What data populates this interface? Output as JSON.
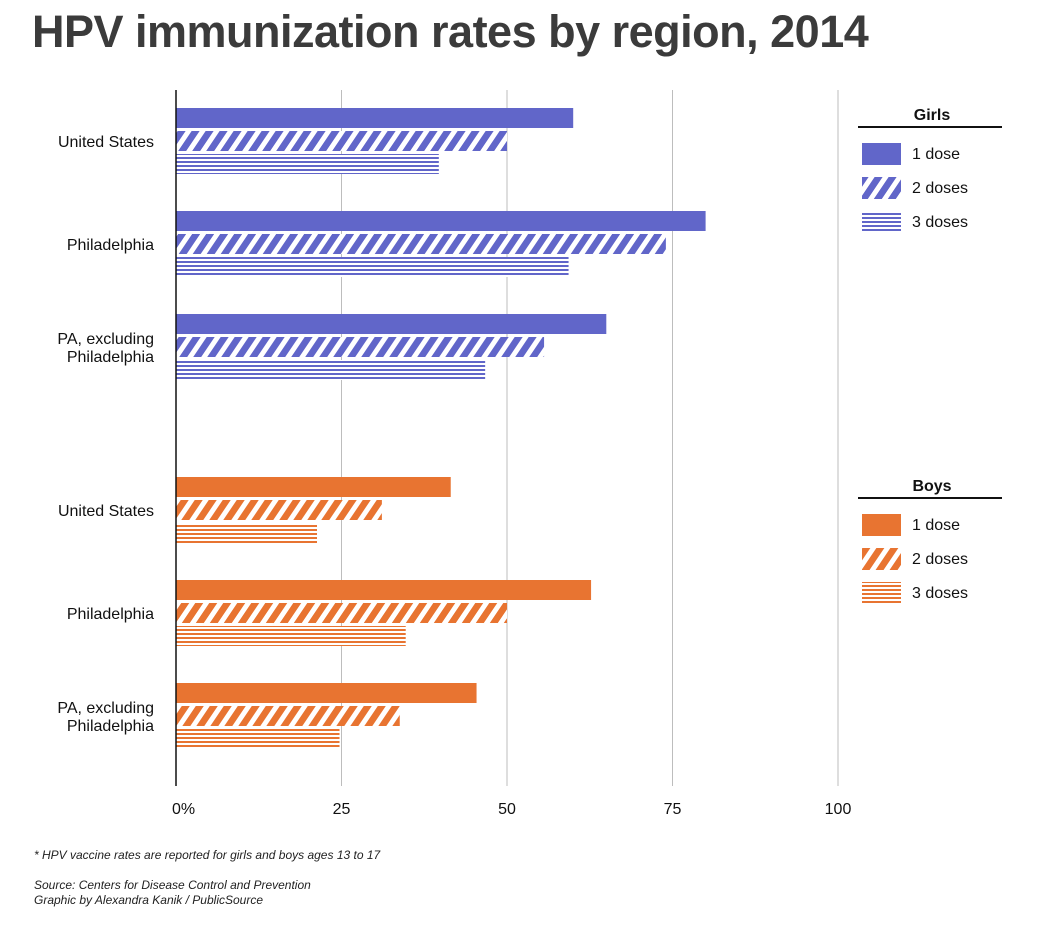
{
  "chart_data": {
    "type": "bar",
    "orientation": "horizontal",
    "title": "HPV immunization rates by region, 2014",
    "xlim": [
      0,
      100
    ],
    "x_ticks": [
      {
        "value": 0,
        "label": "0%"
      },
      {
        "value": 25,
        "label": "25"
      },
      {
        "value": 50,
        "label": "50"
      },
      {
        "value": 75,
        "label": "75"
      },
      {
        "value": 100,
        "label": "100"
      }
    ],
    "grid": true,
    "groups": [
      {
        "name": "Girls",
        "color": "#6166c9",
        "legend_placement": "top-right",
        "legend": [
          "1 dose",
          "2 doses",
          "3 doses"
        ],
        "categories": [
          {
            "label": [
              "United States"
            ],
            "values": [
              60,
              50,
              39.7
            ]
          },
          {
            "label": [
              "Philadelphia"
            ],
            "values": [
              80,
              74,
              59.3
            ]
          },
          {
            "label": [
              "PA, excluding",
              "Philadelphia"
            ],
            "values": [
              65,
              55.6,
              46.7
            ]
          }
        ]
      },
      {
        "name": "Boys",
        "color": "#e87431",
        "legend_placement": "right",
        "legend": [
          "1 dose",
          "2 doses",
          "3 doses"
        ],
        "categories": [
          {
            "label": [
              "United States"
            ],
            "values": [
              41.5,
              31.1,
              21.3
            ]
          },
          {
            "label": [
              "Philadelphia"
            ],
            "values": [
              62.7,
              50,
              34.7
            ]
          },
          {
            "label": [
              "PA, excluding",
              "Philadelphia"
            ],
            "values": [
              45.4,
              33.8,
              24.7
            ]
          }
        ]
      }
    ]
  },
  "notes": {
    "footnote": "* HPV vaccine rates are reported for girls and boys ages 13 to 17",
    "source": "Source: Centers for Disease Control and Prevention",
    "credit": "Graphic by Alexandra Kanik / PublicSource"
  }
}
